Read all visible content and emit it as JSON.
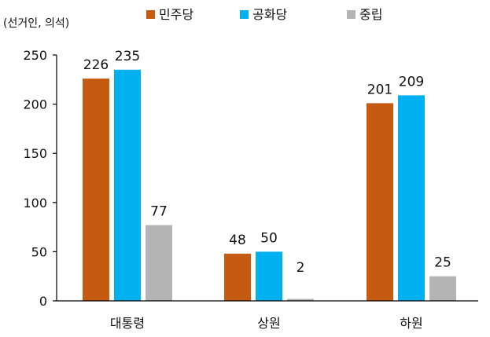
{
  "chart_data": {
    "type": "bar",
    "unit_label": "(선거인, 의석)",
    "categories": [
      "대통령",
      "상원",
      "하원"
    ],
    "series": [
      {
        "name": "민주당",
        "color": "#C55A11",
        "values": [
          226,
          48,
          201
        ]
      },
      {
        "name": "공화당",
        "color": "#00B0F0",
        "values": [
          235,
          50,
          209
        ]
      },
      {
        "name": "중립",
        "color": "#B4B4B4",
        "values": [
          77,
          2,
          25
        ]
      }
    ],
    "ylim": [
      0,
      250
    ],
    "yticks": [
      0,
      50,
      100,
      150,
      200,
      250
    ],
    "grid": false,
    "legend_position": "top"
  }
}
